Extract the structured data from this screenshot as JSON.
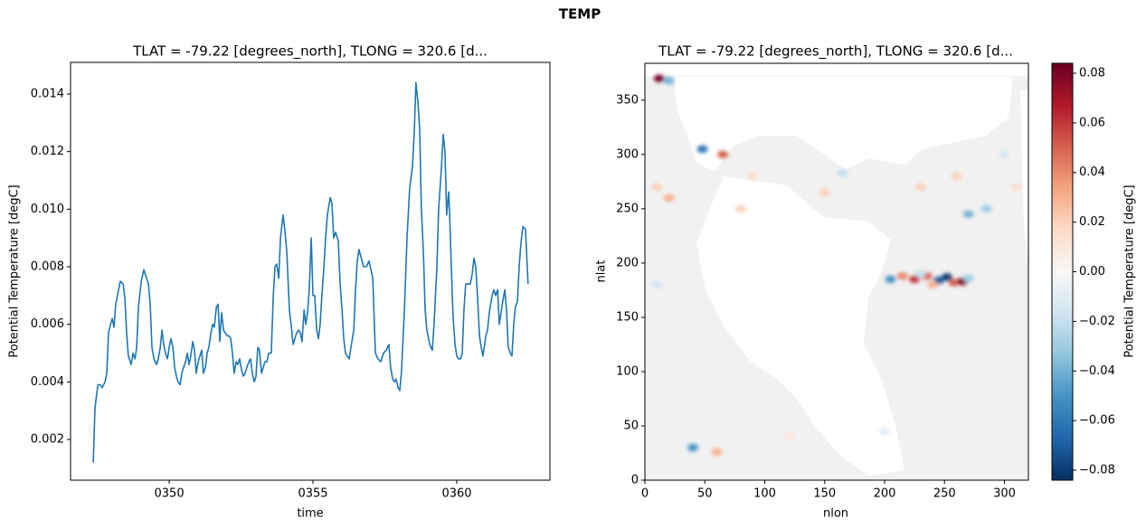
{
  "title": "TEMP",
  "chart_data": [
    {
      "type": "line",
      "title": "TLAT = -79.22 [degrees_north], TLONG = 320.6 [d...",
      "xlabel": "time",
      "ylabel": "Potential Temperature [degC]",
      "color": "#1f77b4",
      "x": [
        347.36,
        347.42,
        347.52,
        347.61,
        347.67,
        347.77,
        347.83,
        347.89,
        347.96,
        348.02,
        348.08,
        348.14,
        348.24,
        348.3,
        348.4,
        348.46,
        348.52,
        348.58,
        348.68,
        348.74,
        348.81,
        348.87,
        348.93,
        349.03,
        349.12,
        349.18,
        349.28,
        349.34,
        349.4,
        349.47,
        349.56,
        349.62,
        349.69,
        349.75,
        349.81,
        349.87,
        349.94,
        350.0,
        350.06,
        350.13,
        350.19,
        350.25,
        350.31,
        350.38,
        350.44,
        350.5,
        350.57,
        350.63,
        350.69,
        350.75,
        350.82,
        350.88,
        350.94,
        351.01,
        351.07,
        351.13,
        351.19,
        351.26,
        351.32,
        351.38,
        351.45,
        351.51,
        351.57,
        351.64,
        351.7,
        351.76,
        351.82,
        351.89,
        351.95,
        352.01,
        352.08,
        352.14,
        352.2,
        352.26,
        352.33,
        352.39,
        352.45,
        352.52,
        352.58,
        352.64,
        352.7,
        352.77,
        352.83,
        352.89,
        352.96,
        353.02,
        353.08,
        353.14,
        353.21,
        353.27,
        353.33,
        353.4,
        353.46,
        353.55,
        353.62,
        353.68,
        353.74,
        353.81,
        353.87,
        353.96,
        354.03,
        354.09,
        354.18,
        354.25,
        354.31,
        354.37,
        354.43,
        354.5,
        354.56,
        354.62,
        354.69,
        354.75,
        354.81,
        354.87,
        354.94,
        355.0,
        355.06,
        355.13,
        355.19,
        355.25,
        355.31,
        355.38,
        355.44,
        355.5,
        355.6,
        355.66,
        355.72,
        355.79,
        355.88,
        355.94,
        356.01,
        356.07,
        356.13,
        356.19,
        356.26,
        356.32,
        356.42,
        356.48,
        356.54,
        356.6,
        356.76,
        356.86,
        356.95,
        357.08,
        357.17,
        357.26,
        357.36,
        357.45,
        357.55,
        357.64,
        357.7,
        357.77,
        357.83,
        357.89,
        357.96,
        358.02,
        358.08,
        358.18,
        358.27,
        358.36,
        358.46,
        358.52,
        358.58,
        358.65,
        358.71,
        358.77,
        358.84,
        358.9,
        358.96,
        359.06,
        359.15,
        359.21,
        359.31,
        359.37,
        359.47,
        359.53,
        359.59,
        359.65,
        359.72,
        359.75,
        359.81,
        359.87,
        359.94,
        360.0,
        360.06,
        360.13,
        360.19,
        360.25,
        360.31,
        360.41,
        360.47,
        360.53,
        360.6,
        360.66,
        360.72,
        360.79,
        360.85,
        360.91,
        361.01,
        361.07,
        361.13,
        361.23,
        361.29,
        361.35,
        361.42,
        361.48,
        361.54,
        361.6,
        361.67,
        361.73,
        361.79,
        361.86,
        361.92,
        361.98,
        362.04,
        362.11,
        362.17,
        362.23,
        362.3,
        362.39,
        362.48
      ],
      "values": [
        0.0012,
        0.0031,
        0.0039,
        0.0039,
        0.0038,
        0.004,
        0.0043,
        0.0057,
        0.006,
        0.0062,
        0.0059,
        0.0067,
        0.0072,
        0.0075,
        0.0074,
        0.0069,
        0.0057,
        0.0049,
        0.0046,
        0.005,
        0.0048,
        0.0052,
        0.0066,
        0.0075,
        0.0079,
        0.0077,
        0.0074,
        0.0067,
        0.0052,
        0.0048,
        0.0046,
        0.0048,
        0.0052,
        0.0058,
        0.0053,
        0.005,
        0.0048,
        0.0052,
        0.0055,
        0.0052,
        0.0045,
        0.0042,
        0.004,
        0.0039,
        0.0043,
        0.0045,
        0.0047,
        0.005,
        0.0046,
        0.0049,
        0.0054,
        0.0051,
        0.0043,
        0.0047,
        0.0049,
        0.0051,
        0.0043,
        0.0045,
        0.005,
        0.0052,
        0.0057,
        0.006,
        0.0059,
        0.0066,
        0.0067,
        0.0054,
        0.0064,
        0.0058,
        0.0057,
        0.0056,
        0.0056,
        0.0055,
        0.005,
        0.0043,
        0.0047,
        0.0046,
        0.0048,
        0.0044,
        0.0042,
        0.0043,
        0.0045,
        0.0047,
        0.0048,
        0.0043,
        0.004,
        0.0042,
        0.0052,
        0.0051,
        0.0043,
        0.0045,
        0.0047,
        0.0047,
        0.005,
        0.005,
        0.007,
        0.008,
        0.0081,
        0.0076,
        0.009,
        0.0098,
        0.0092,
        0.0085,
        0.0065,
        0.0059,
        0.0053,
        0.0055,
        0.0057,
        0.0058,
        0.0057,
        0.0054,
        0.0065,
        0.006,
        0.0064,
        0.0072,
        0.009,
        0.007,
        0.007,
        0.0058,
        0.0055,
        0.006,
        0.007,
        0.008,
        0.009,
        0.0098,
        0.0104,
        0.0102,
        0.009,
        0.0092,
        0.0089,
        0.0075,
        0.0065,
        0.0055,
        0.005,
        0.0049,
        0.0048,
        0.0052,
        0.0058,
        0.0072,
        0.0082,
        0.0086,
        0.008,
        0.008,
        0.0082,
        0.0076,
        0.005,
        0.0048,
        0.0047,
        0.005,
        0.0051,
        0.0053,
        0.0045,
        0.0041,
        0.004,
        0.0041,
        0.0038,
        0.0037,
        0.0044,
        0.0065,
        0.009,
        0.0107,
        0.0115,
        0.0126,
        0.0144,
        0.0137,
        0.0128,
        0.01,
        0.0085,
        0.0065,
        0.0058,
        0.0053,
        0.0051,
        0.006,
        0.008,
        0.01,
        0.0115,
        0.0126,
        0.012,
        0.0098,
        0.0106,
        0.0099,
        0.008,
        0.0063,
        0.0053,
        0.0049,
        0.0048,
        0.0048,
        0.005,
        0.0065,
        0.0074,
        0.0074,
        0.0074,
        0.0077,
        0.0083,
        0.008,
        0.007,
        0.0056,
        0.0052,
        0.0049,
        0.0056,
        0.0058,
        0.0064,
        0.007,
        0.0072,
        0.007,
        0.0072,
        0.006,
        0.0064,
        0.0068,
        0.0072,
        0.0065,
        0.0052,
        0.005,
        0.0049,
        0.006,
        0.0066,
        0.0068,
        0.008,
        0.0088,
        0.0094,
        0.0093,
        0.0074
      ],
      "xlim": [
        346.57,
        363.24
      ],
      "ylim": [
        0.000586,
        0.0151
      ],
      "xticks": [
        {
          "value": 350,
          "label": "0350"
        },
        {
          "value": 355,
          "label": "0355"
        },
        {
          "value": 360,
          "label": "0360"
        }
      ],
      "yticks": [
        0.002,
        0.004,
        0.006,
        0.008,
        {
          "value": 0.01,
          "label": "0.010"
        },
        0.012,
        0.014
      ]
    },
    {
      "type": "heatmap",
      "title": "TLAT = -79.22 [degrees_north], TLONG = 320.6 [d...",
      "xlabel": "nlon",
      "ylabel": "nlat",
      "xlim": [
        0,
        320
      ],
      "ylim": [
        0,
        384
      ],
      "xticks": [
        0,
        50,
        100,
        150,
        200,
        250,
        300
      ],
      "yticks": [
        0,
        50,
        100,
        150,
        200,
        250,
        300,
        350
      ],
      "x": [
        205,
        215,
        225,
        235,
        245,
        252,
        258,
        265,
        270,
        240,
        230,
        12,
        20,
        65,
        48,
        20,
        10,
        80,
        150,
        165,
        230,
        260,
        285,
        270,
        40,
        60,
        200,
        120,
        10,
        300,
        310,
        90
      ],
      "y": [
        185,
        188,
        185,
        188,
        184,
        187,
        182,
        183,
        186,
        180,
        190,
        370,
        368,
        300,
        305,
        260,
        270,
        250,
        265,
        283,
        270,
        280,
        250,
        245,
        30,
        26,
        45,
        40,
        180,
        300,
        270,
        280
      ],
      "values": [
        -0.05,
        0.04,
        0.06,
        0.05,
        -0.07,
        -0.08,
        0.05,
        0.08,
        -0.03,
        0.03,
        -0.02,
        0.08,
        -0.04,
        0.05,
        -0.06,
        0.03,
        0.02,
        0.02,
        0.02,
        -0.02,
        0.02,
        0.02,
        -0.03,
        -0.04,
        -0.05,
        0.03,
        -0.01,
        0.01,
        -0.015,
        -0.015,
        0.015,
        0.015
      ],
      "colorbar": {
        "label": "Potential Temperature [degC]",
        "clim": [
          -0.084,
          0.084
        ],
        "colors": [
          "#053061",
          "#2166ac",
          "#4393c3",
          "#92c5de",
          "#d1e5f0",
          "#f7f7f7",
          "#fddbc7",
          "#f4a582",
          "#d6604d",
          "#b2182b",
          "#67001f"
        ],
        "ticks": [
          {
            "value": -0.08,
            "label": "−0.08"
          },
          {
            "value": -0.06,
            "label": "−0.06"
          },
          {
            "value": -0.04,
            "label": "−0.04"
          },
          {
            "value": -0.02,
            "label": "−0.02"
          },
          {
            "value": 0,
            "label": "0.00"
          },
          0.02,
          0.04,
          0.06,
          0.08
        ]
      }
    }
  ]
}
